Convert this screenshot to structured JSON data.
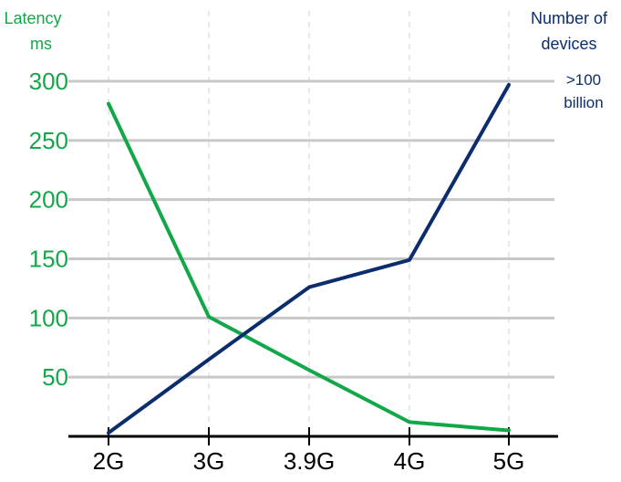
{
  "chart_data": {
    "type": "line",
    "categories": [
      "2G",
      "3G",
      "3.9G",
      "4G",
      "5G"
    ],
    "left_axis": {
      "label_line1": "Latency",
      "label_line2": "ms",
      "ticks": [
        "50",
        "100",
        "150",
        "200",
        "250",
        "300"
      ],
      "ylim": [
        0,
        300
      ]
    },
    "right_axis": {
      "label_line1": "Number of",
      "label_line2": "devices",
      "annotation_line1": ">100",
      "annotation_line2": "billion"
    },
    "series": [
      {
        "axis": "left",
        "color": "#12a84a",
        "values": [
          281,
          101,
          56,
          12,
          5
        ]
      },
      {
        "axis": "right",
        "color": "#0b2d6e",
        "values": [
          3,
          65,
          126,
          149,
          297
        ]
      }
    ],
    "grid": true,
    "colors": {
      "left_axis_text": "#12a84a",
      "right_axis_text": "#0b2d6e",
      "grid": "#c8c8c8",
      "baseline": "#000000"
    }
  }
}
